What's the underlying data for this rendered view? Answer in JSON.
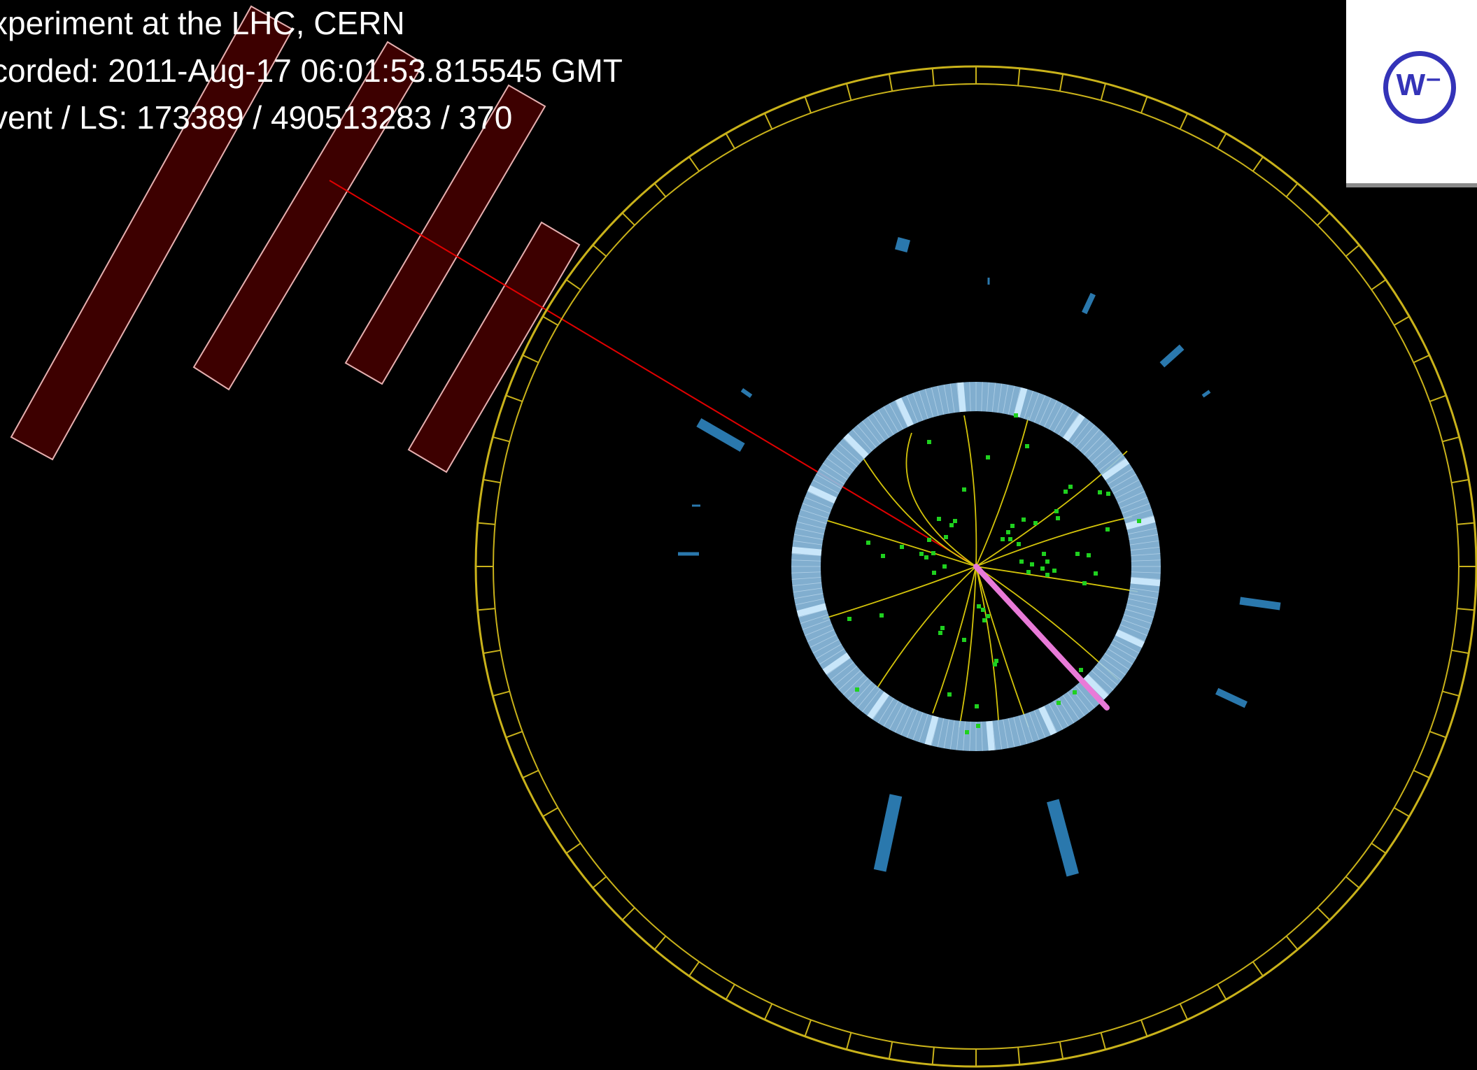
{
  "header": {
    "line1": "xperiment at the LHC, CERN",
    "line2": "corded: 2011-Aug-17 06:01:53.815545 GMT",
    "line3": "vent / LS: 173389 / 490513283 / 370"
  },
  "logo": {
    "label": "W⁻"
  },
  "colors": {
    "background": "#000000",
    "text": "#ffffff",
    "muon_chamber_fill": "#3d0000",
    "muon_chamber_outline": "#e6b0b0",
    "muon_track": "#e00000",
    "outer_ring": "#c9b21a",
    "inner_ring": "#8fc1e6",
    "inner_ring_highlight": "#c8e6fa",
    "tracks": "#d4c40a",
    "hits": "#1fd11f",
    "calorimeter_towers": "#2a78ad",
    "electron": "#e87ad8",
    "logo_accent": "#3433b8"
  }
}
